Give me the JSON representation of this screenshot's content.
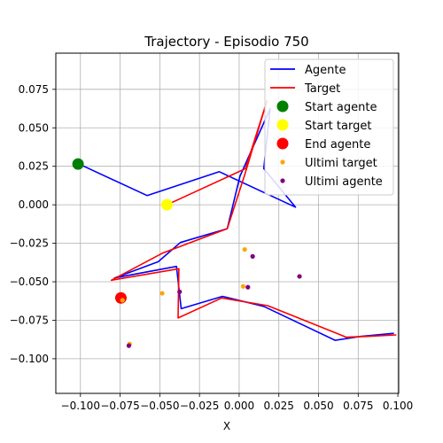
{
  "chart_data": {
    "type": "line",
    "title": "Trajectory - Episodio 750",
    "xlabel": "X",
    "ylabel": "",
    "xlim": [
      -0.1155,
      0.1005
    ],
    "ylim": [
      -0.1225,
      0.0985
    ],
    "grid": true,
    "legend_position": "top-right",
    "x_ticks": [
      {
        "value": -0.1,
        "label": "−0.100"
      },
      {
        "value": -0.075,
        "label": "−0.075"
      },
      {
        "value": -0.05,
        "label": "−0.050"
      },
      {
        "value": -0.025,
        "label": "−0.025"
      },
      {
        "value": 0.0,
        "label": "0.000"
      },
      {
        "value": 0.025,
        "label": "0.025"
      },
      {
        "value": 0.05,
        "label": "0.050"
      },
      {
        "value": 0.075,
        "label": "0.075"
      },
      {
        "value": 0.1,
        "label": "0.100"
      }
    ],
    "y_ticks": [
      {
        "value": 0.075,
        "label": "0.075"
      },
      {
        "value": 0.05,
        "label": "0.050"
      },
      {
        "value": 0.025,
        "label": "0.025"
      },
      {
        "value": 0.0,
        "label": "0.000"
      },
      {
        "value": -0.025,
        "label": "−0.025"
      },
      {
        "value": -0.05,
        "label": "−0.050"
      },
      {
        "value": -0.075,
        "label": "−0.075"
      },
      {
        "value": -0.1,
        "label": "−0.100"
      }
    ],
    "series": [
      {
        "name": "Agente",
        "kind": "line",
        "color": "#0000ff",
        "points": [
          [
            -0.102,
            0.027
          ],
          [
            -0.058,
            0.006
          ],
          [
            -0.0125,
            0.0215
          ],
          [
            0.0355,
            -0.0015
          ],
          [
            0.0155,
            0.0235
          ],
          [
            0.0195,
            0.0625
          ],
          [
            0.0005,
            0.0185
          ],
          [
            -0.0075,
            -0.0155
          ],
          [
            -0.037,
            -0.0245
          ],
          [
            -0.051,
            -0.037
          ],
          [
            -0.0785,
            -0.0475
          ],
          [
            -0.0395,
            -0.04
          ],
          [
            -0.0365,
            -0.0675
          ],
          [
            -0.0105,
            -0.0595
          ],
          [
            0.0155,
            -0.066
          ],
          [
            0.0605,
            -0.088
          ],
          [
            0.0765,
            -0.0855
          ],
          [
            0.0975,
            -0.0835
          ]
        ]
      },
      {
        "name": "Target",
        "kind": "line",
        "color": "#ff0000",
        "points": [
          [
            -0.0445,
            0.0005
          ],
          [
            0.004,
            0.0235
          ],
          [
            0.0175,
            0.0675
          ],
          [
            0.0035,
            0.0195
          ],
          [
            -0.0075,
            -0.0155
          ],
          [
            -0.0485,
            -0.0315
          ],
          [
            -0.0805,
            -0.049
          ],
          [
            -0.038,
            -0.0415
          ],
          [
            -0.0385,
            -0.0735
          ],
          [
            -0.011,
            -0.0605
          ],
          [
            0.018,
            -0.0655
          ],
          [
            0.0675,
            -0.086
          ],
          [
            0.0805,
            -0.0855
          ],
          [
            0.099,
            -0.0845
          ]
        ]
      },
      {
        "name": "Start agente",
        "kind": "marker",
        "color": "#008000",
        "points": [
          [
            -0.1015,
            0.0265
          ]
        ]
      },
      {
        "name": "Start target",
        "kind": "marker",
        "color": "#ffff00",
        "points": [
          [
            -0.0455,
            0.0
          ]
        ]
      },
      {
        "name": "End agente",
        "kind": "marker",
        "color": "#ff0000",
        "points": [
          [
            -0.0745,
            -0.0605
          ]
        ]
      },
      {
        "name": "Ultimi target",
        "kind": "scatter",
        "color": "#ffa500",
        "points": [
          [
            0.0035,
            -0.029
          ],
          [
            -0.0485,
            -0.0575
          ],
          [
            0.0025,
            -0.053
          ],
          [
            -0.0735,
            -0.062
          ],
          [
            -0.069,
            -0.0905
          ]
        ]
      },
      {
        "name": "Ultimi agente",
        "kind": "scatter",
        "color": "#800080",
        "points": [
          [
            0.0085,
            -0.0335
          ],
          [
            -0.0375,
            -0.0565
          ],
          [
            0.038,
            -0.0465
          ],
          [
            0.0055,
            -0.0535
          ],
          [
            -0.0695,
            -0.0915
          ]
        ]
      }
    ]
  }
}
